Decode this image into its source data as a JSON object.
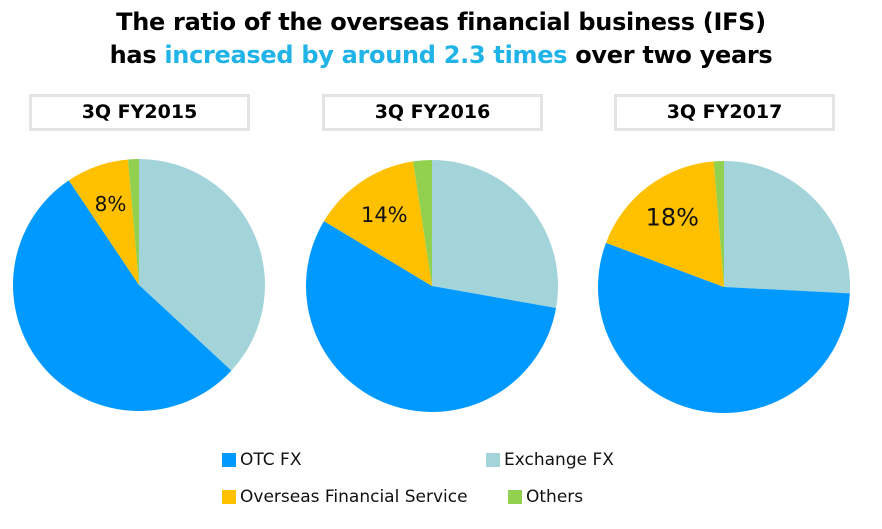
{
  "title": {
    "line1": "The ratio of the overseas financial business (IFS)",
    "line2_prefix": "has ",
    "line2_highlight": "increased by around 2.3 times",
    "line2_suffix": " over two years",
    "highlight_color": "#1fb3e8"
  },
  "chart_data": {
    "type": "pie",
    "title": "The ratio of the overseas financial business (IFS) has increased by around 2.3 times over two years",
    "categories": [
      "OTC FX",
      "Exchange FX",
      "Overseas Financial Service",
      "Others"
    ],
    "colors": [
      "#0099ff",
      "#a2d4d9",
      "#ffc000",
      "#92d050"
    ],
    "legend_position": "bottom",
    "pies": [
      {
        "label": "3Q FY2015",
        "values": [
          53.7,
          36.9,
          8,
          1.4
        ],
        "data_label": "8%"
      },
      {
        "label": "3Q FY2016",
        "values": [
          55.8,
          27.8,
          14,
          2.4
        ],
        "data_label": "14%"
      },
      {
        "label": "3Q FY2017",
        "values": [
          54.9,
          25.8,
          18,
          1.3
        ],
        "data_label": "18%"
      }
    ]
  },
  "legend": [
    {
      "label": "OTC FX",
      "color": "#0099ff"
    },
    {
      "label": "Exchange FX",
      "color": "#a2d4d9"
    },
    {
      "label": "Overseas Financial Service",
      "color": "#ffc000"
    },
    {
      "label": "Others",
      "color": "#92d050"
    }
  ]
}
